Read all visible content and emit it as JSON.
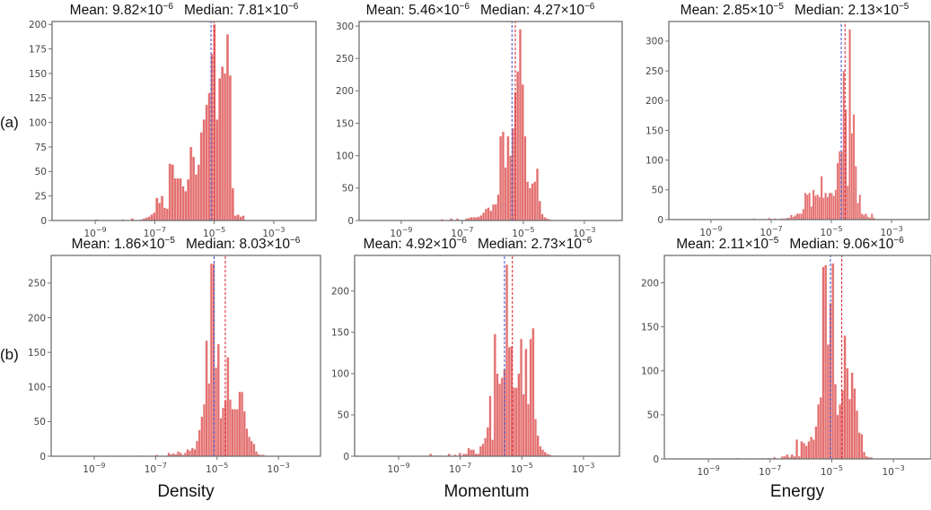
{
  "figure": {
    "row_labels": [
      "(a)",
      "(b)"
    ],
    "xlabels": [
      "Density",
      "Momentum",
      "Energy"
    ],
    "mean_label": "Mean:",
    "median_label": "Median:",
    "times": "×10",
    "tick_base": "10",
    "colors": {
      "bar": "#e36f6f",
      "bar_edge": "#fbe3e3",
      "mean_line": "#e0303a",
      "median_line": "#4a5bd6",
      "axes": "#707070"
    }
  },
  "chart_data": [
    {
      "type": "bar",
      "title": "Mean: 9.82×10^-6  Median: 7.81×10^-6",
      "row": "(a)",
      "quantity": "Density",
      "x_scale": "log10",
      "xlim": [
        -10.45,
        -1.58
      ],
      "ylim": [
        0,
        203
      ],
      "xticks": [
        -9,
        -7,
        -5,
        -3
      ],
      "yticks": [
        0,
        25,
        50,
        75,
        100,
        125,
        150,
        175,
        200
      ],
      "bin_start": -7.5,
      "bin_width": 0.088,
      "counts": [
        1,
        2,
        3,
        4,
        6,
        8,
        23,
        18,
        25,
        13,
        12,
        58,
        57,
        43,
        43,
        43,
        35,
        30,
        42,
        75,
        65,
        47,
        57,
        90,
        103,
        118,
        130,
        170,
        200,
        103,
        145,
        157,
        150,
        190,
        148,
        33,
        5,
        6,
        4,
        5
      ],
      "tails": [
        [
          -9.0,
          1
        ],
        [
          -8.1,
          1
        ],
        [
          -7.8,
          2
        ]
      ],
      "mean": {
        "mantissa": "9.82",
        "exp": "-6"
      },
      "median": {
        "mantissa": "7.81",
        "exp": "-6"
      }
    },
    {
      "type": "bar",
      "title": "Mean: 5.46×10^-6  Median: 4.27×10^-6",
      "row": "(a)",
      "quantity": "Momentum",
      "x_scale": "log10",
      "xlim": [
        -10.38,
        -1.76
      ],
      "ylim": [
        0,
        307
      ],
      "xticks": [
        -9,
        -7,
        -5,
        -3
      ],
      "yticks": [
        0,
        50,
        100,
        150,
        200,
        250,
        300
      ],
      "bin_start": -6.9,
      "bin_width": 0.08,
      "counts": [
        3,
        4,
        5,
        5,
        5,
        6,
        8,
        12,
        18,
        20,
        15,
        25,
        25,
        40,
        130,
        137,
        82,
        130,
        100,
        142,
        198,
        230,
        295,
        210,
        130,
        60,
        50,
        57,
        60,
        80,
        30,
        10,
        5,
        3,
        2,
        1
      ],
      "tails": [
        [
          -8.6,
          1
        ],
        [
          -8.0,
          1
        ],
        [
          -7.7,
          2
        ],
        [
          -7.4,
          3
        ],
        [
          -7.2,
          3
        ]
      ],
      "mean": {
        "mantissa": "5.46",
        "exp": "-6"
      },
      "median": {
        "mantissa": "4.27",
        "exp": "-6"
      }
    },
    {
      "type": "bar",
      "title": "Mean: 2.85×10^-5  Median: 2.13×10^-5",
      "row": "(a)",
      "quantity": "Energy",
      "x_scale": "log10",
      "xlim": [
        -10.4,
        -1.75
      ],
      "ylim": [
        0,
        333
      ],
      "xticks": [
        -9,
        -7,
        -5,
        -3
      ],
      "yticks": [
        0,
        50,
        100,
        150,
        200,
        250,
        300
      ],
      "bin_start": -6.7,
      "bin_width": 0.067,
      "counts": [
        2,
        2,
        2,
        3,
        3,
        8,
        5,
        7,
        10,
        10,
        10,
        18,
        45,
        42,
        45,
        22,
        50,
        40,
        42,
        38,
        73,
        37,
        45,
        38,
        45,
        45,
        40,
        50,
        95,
        115,
        115,
        250,
        185,
        57,
        320,
        145,
        177,
        90,
        28,
        42,
        10,
        8,
        10,
        5,
        3,
        10,
        3
      ],
      "tails": [
        [
          -7.6,
          2
        ],
        [
          -7.1,
          3
        ],
        [
          -6.9,
          2
        ]
      ],
      "mean": {
        "mantissa": "2.85",
        "exp": "-5"
      },
      "median": {
        "mantissa": "2.13",
        "exp": "-5"
      }
    },
    {
      "type": "bar",
      "title": "Mean: 1.86×10^-5  Median: 8.03×10^-6",
      "row": "(b)",
      "quantity": "Density",
      "x_scale": "log10",
      "xlim": [
        -10.4,
        -1.63
      ],
      "ylim": [
        0,
        290
      ],
      "xticks": [
        -9,
        -7,
        -5,
        -3
      ],
      "yticks": [
        0,
        50,
        100,
        150,
        200,
        250
      ],
      "bin_start": -6.61,
      "bin_width": 0.077,
      "counts": [
        5,
        3,
        4,
        3,
        7,
        5,
        2,
        5,
        10,
        8,
        12,
        10,
        22,
        38,
        57,
        75,
        167,
        105,
        278,
        278,
        128,
        162,
        55,
        70,
        80,
        143,
        82,
        68,
        68,
        68,
        93,
        93,
        65,
        40,
        28,
        22,
        18,
        7,
        3,
        2,
        2
      ],
      "tails": [
        [
          -8.2,
          1
        ],
        [
          -7.6,
          1
        ],
        [
          -7.0,
          2
        ]
      ],
      "mean": {
        "mantissa": "1.86",
        "exp": "-5"
      },
      "median": {
        "mantissa": "8.03",
        "exp": "-6"
      }
    },
    {
      "type": "bar",
      "title": "Mean: 4.92×10^-6  Median: 2.73×10^-6",
      "row": "(b)",
      "quantity": "Momentum",
      "x_scale": "log10",
      "xlim": [
        -10.43,
        -1.83
      ],
      "ylim": [
        0,
        243
      ],
      "xticks": [
        -9,
        -7,
        -5,
        -3
      ],
      "yticks": [
        0,
        50,
        100,
        150,
        200
      ],
      "bin_start": -6.92,
      "bin_width": 0.0775,
      "counts": [
        3,
        3,
        10,
        8,
        8,
        3,
        3,
        12,
        15,
        22,
        35,
        73,
        20,
        148,
        100,
        88,
        95,
        105,
        232,
        132,
        133,
        83,
        83,
        100,
        142,
        75,
        130,
        63,
        142,
        155,
        45,
        25,
        12,
        8,
        5,
        3,
        2,
        1
      ],
      "tails": [
        [
          -8.0,
          3
        ],
        [
          -7.9,
          1
        ],
        [
          -7.7,
          1
        ],
        [
          -7.4,
          3
        ],
        [
          -7.2,
          2
        ],
        [
          -7.05,
          4
        ]
      ],
      "mean": {
        "mantissa": "4.92",
        "exp": "-6"
      },
      "median": {
        "mantissa": "2.73",
        "exp": "-6"
      }
    },
    {
      "type": "bar",
      "title": "Mean: 2.11×10^-5  Median: 9.06×10^-6",
      "row": "(b)",
      "quantity": "Energy",
      "x_scale": "log10",
      "xlim": [
        -10.43,
        -1.78
      ],
      "ylim": [
        0,
        231
      ],
      "xticks": [
        -9,
        -7,
        -5,
        -3
      ],
      "yticks": [
        0,
        50,
        100,
        150,
        200
      ],
      "bin_start": -6.64,
      "bin_width": 0.078,
      "counts": [
        3,
        3,
        5,
        2,
        5,
        3,
        22,
        3,
        20,
        18,
        15,
        20,
        25,
        22,
        37,
        62,
        70,
        218,
        220,
        130,
        177,
        222,
        85,
        50,
        62,
        78,
        140,
        103,
        68,
        98,
        80,
        55,
        30,
        28,
        8,
        3,
        2,
        2
      ],
      "tails": [
        [
          -8.1,
          1
        ],
        [
          -7.3,
          1
        ],
        [
          -7.1,
          1
        ],
        [
          -6.9,
          2
        ]
      ],
      "mean": {
        "mantissa": "2.11",
        "exp": "-5"
      },
      "median": {
        "mantissa": "9.06",
        "exp": "-6"
      }
    }
  ]
}
